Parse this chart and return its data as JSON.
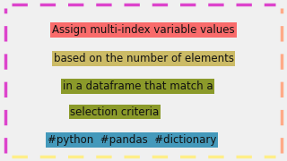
{
  "bg_color": "#f0f0f0",
  "border_color_top": "#dd44cc",
  "border_color_bottom": "#ffee88",
  "border_color_left": "#dd44cc",
  "border_color_right": "#ffaa88",
  "line1_text": "Assign multi-index variable values",
  "line1_bg": "#f96b6b",
  "line2_text": "based on the number of elements",
  "line2_bg": "#ccbb66",
  "line3_text": "in a dataframe that match a",
  "line3_bg": "#8b9a2a",
  "line4_text": "selection criteria",
  "line4_bg": "#8b9a2a",
  "line5_text": "#python  #pandas  #dictionary",
  "line5_bg": "#4499bb",
  "text_color": "#111111",
  "font_size": 8.5,
  "figw": 3.2,
  "figh": 1.8,
  "dpi": 100
}
